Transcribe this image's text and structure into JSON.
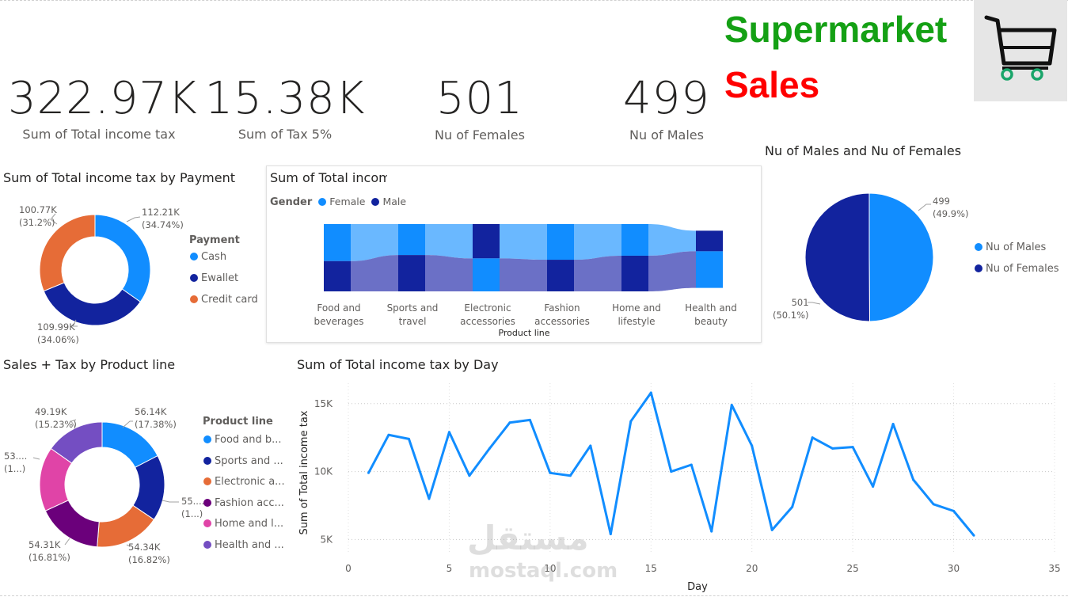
{
  "brand": {
    "line1": "Supermarket",
    "line2": "Sales",
    "icon": "shopping-cart-icon"
  },
  "kpis": [
    {
      "value": "322.97K",
      "label": "Sum of Total income tax"
    },
    {
      "value": "15.38K",
      "label": "Sum of Tax 5%"
    },
    {
      "value": "501",
      "label": "Nu of Females"
    },
    {
      "value": "499",
      "label": "Nu of Males"
    }
  ],
  "colors": {
    "blue": "#118DFF",
    "navy": "#12239E",
    "orange": "#E66C37",
    "purple": "#6B007B",
    "pink": "#E044A7",
    "violet": "#744EC2",
    "brand_green": "#14A014",
    "brand_red": "#FF0000"
  },
  "payment": {
    "title": "Sum of Total income tax by Payment",
    "legend_title": "Payment",
    "legend": [
      "Cash",
      "Ewallet",
      "Credit card"
    ],
    "labels": [
      {
        "value": "112.21K",
        "pct": "(34.74%)"
      },
      {
        "value": "109.99K",
        "pct": "(34.06%)"
      },
      {
        "value": "100.77K",
        "pct": "(31.2%)"
      }
    ]
  },
  "sankey": {
    "title": "Sum of Total incom",
    "legend_title": "Gender",
    "legend": [
      "Female",
      "Male"
    ],
    "xlabel": "Product line",
    "categories": [
      [
        "Food and",
        "beverages"
      ],
      [
        "Sports and",
        "travel"
      ],
      [
        "Electronic",
        "accessories"
      ],
      [
        "Fashion",
        "accessories"
      ],
      [
        "Home and",
        "lifestyle"
      ],
      [
        "Health and",
        "beauty"
      ]
    ]
  },
  "gender_pie": {
    "title": "Nu of Males and Nu of Females",
    "legend": [
      "Nu of Males",
      "Nu of Females"
    ],
    "labels": [
      {
        "value": "499",
        "pct": "(49.9%)"
      },
      {
        "value": "501",
        "pct": "(50.1%)"
      }
    ]
  },
  "product": {
    "title": "Sales + Tax by Product line",
    "legend_title": "Product line",
    "legend": [
      "Food and b...",
      "Sports and ...",
      "Electronic a...",
      "Fashion acc...",
      "Home and l...",
      "Health and ..."
    ],
    "labels": [
      {
        "value": "56.14K",
        "pct": "(17.38%)"
      },
      {
        "value": "55....",
        "pct": "(1...)"
      },
      {
        "value": "54.34K",
        "pct": "(16.82%)"
      },
      {
        "value": "54.31K",
        "pct": "(16.81%)"
      },
      {
        "value": "53....",
        "pct": "(1...)"
      },
      {
        "value": "49.19K",
        "pct": "(15.23%)"
      }
    ]
  },
  "line_chart": {
    "title": "Sum of Total income tax by Day",
    "xlabel": "Day",
    "ylabel": "Sum of Total income tax",
    "x_ticks": [
      "0",
      "5",
      "10",
      "15",
      "20",
      "25",
      "30",
      "35"
    ],
    "y_ticks": [
      "5K",
      "10K",
      "15K"
    ]
  },
  "watermark": {
    "arabic": "مستقل",
    "latin": "mostaql.com"
  },
  "chart_data": [
    {
      "type": "pie",
      "variant": "donut",
      "title": "Sum of Total income tax by Payment",
      "categories": [
        "Cash",
        "Ewallet",
        "Credit card"
      ],
      "values": [
        112.21,
        109.99,
        100.77
      ],
      "unit": "K",
      "colors": [
        "#118DFF",
        "#12239E",
        "#E66C37"
      ],
      "legend": "right"
    },
    {
      "type": "bar",
      "variant": "ribbon",
      "title": "Sum of Total incom",
      "xlabel": "Product line",
      "categories": [
        "Food and beverages",
        "Sports and travel",
        "Electronic accessories",
        "Fashion accessories",
        "Home and lifestyle",
        "Health and beauty"
      ],
      "series": [
        {
          "name": "Female",
          "values": [
            0.55,
            0.46,
            0.51,
            0.53,
            0.47,
            0.36
          ]
        },
        {
          "name": "Male",
          "values": [
            0.45,
            0.54,
            0.49,
            0.47,
            0.53,
            0.64
          ]
        }
      ],
      "legend": "top-left"
    },
    {
      "type": "pie",
      "title": "Nu of Males and Nu of Females",
      "categories": [
        "Nu of Males",
        "Nu of Females"
      ],
      "values": [
        499,
        501
      ],
      "colors": [
        "#118DFF",
        "#12239E"
      ],
      "legend": "right"
    },
    {
      "type": "pie",
      "variant": "donut",
      "title": "Sales + Tax by Product line",
      "categories": [
        "Food and beverages",
        "Sports and travel",
        "Electronic accessories",
        "Fashion accessories",
        "Home and lifestyle",
        "Health and beauty"
      ],
      "values": [
        56.14,
        55.12,
        54.34,
        54.31,
        53.86,
        49.19
      ],
      "unit": "K",
      "colors": [
        "#118DFF",
        "#12239E",
        "#E66C37",
        "#6B007B",
        "#E044A7",
        "#744EC2"
      ],
      "legend": "right"
    },
    {
      "type": "line",
      "title": "Sum of Total income tax by Day",
      "xlabel": "Day",
      "ylabel": "Sum of Total income tax",
      "x": [
        1,
        2,
        3,
        4,
        5,
        6,
        7,
        8,
        9,
        10,
        11,
        12,
        13,
        14,
        15,
        16,
        17,
        18,
        19,
        20,
        21,
        22,
        23,
        24,
        25,
        26,
        27,
        28,
        29,
        30,
        31
      ],
      "series": [
        {
          "values": [
            9.9,
            12.7,
            12.4,
            8.0,
            12.9,
            9.7,
            11.7,
            13.6,
            13.8,
            9.9,
            9.7,
            11.9,
            5.4,
            13.7,
            15.8,
            10.0,
            10.5,
            5.6,
            14.9,
            11.9,
            5.7,
            7.4,
            12.5,
            11.7,
            11.8,
            8.9,
            13.5,
            9.4,
            7.6,
            7.1,
            5.3
          ]
        }
      ],
      "unit": "K",
      "xlim": [
        0,
        35
      ],
      "ylim": [
        4.5,
        16.5
      ],
      "grid": true
    }
  ]
}
